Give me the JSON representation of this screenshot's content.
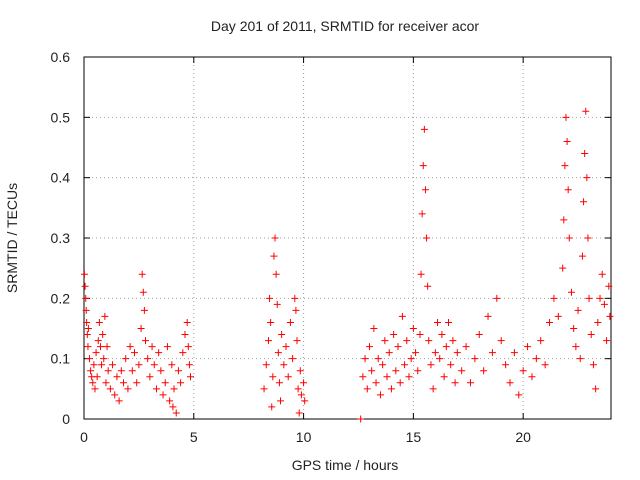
{
  "chart_data": {
    "type": "scatter",
    "title": "Day 201 of 2011, SRMTID for receiver acor",
    "xlabel": "GPS time / hours",
    "ylabel": "SRMTID / TECUs",
    "xlim": [
      0,
      24
    ],
    "ylim": [
      0,
      0.6
    ],
    "xticks": [
      0,
      5,
      10,
      15,
      20
    ],
    "xtick_labels": [
      "0",
      "5",
      "10",
      "15",
      "20"
    ],
    "yticks": [
      0,
      0.1,
      0.2,
      0.3,
      0.4,
      0.5,
      0.6
    ],
    "ytick_labels": [
      "0",
      "0.1",
      "0.2",
      "0.3",
      "0.4",
      "0.5",
      "0.6"
    ],
    "grid": true,
    "marker": "+",
    "series": [
      {
        "name": "SRMTID",
        "color": "#ff0000",
        "points": [
          [
            0.02,
            0.24
          ],
          [
            0.05,
            0.22
          ],
          [
            0.08,
            0.2
          ],
          [
            0.1,
            0.18
          ],
          [
            0.12,
            0.16
          ],
          [
            0.15,
            0.14
          ],
          [
            0.18,
            0.12
          ],
          [
            0.2,
            0.15
          ],
          [
            0.25,
            0.1
          ],
          [
            0.3,
            0.08
          ],
          [
            0.35,
            0.07
          ],
          [
            0.4,
            0.06
          ],
          [
            0.45,
            0.09
          ],
          [
            0.5,
            0.05
          ],
          [
            0.55,
            0.11
          ],
          [
            0.6,
            0.07
          ],
          [
            0.65,
            0.13
          ],
          [
            0.7,
            0.16
          ],
          [
            0.75,
            0.12
          ],
          [
            0.8,
            0.09
          ],
          [
            0.85,
            0.14
          ],
          [
            0.9,
            0.1
          ],
          [
            0.95,
            0.17
          ],
          [
            1.0,
            0.06
          ],
          [
            1.05,
            0.12
          ],
          [
            1.1,
            0.08
          ],
          [
            1.2,
            0.05
          ],
          [
            1.3,
            0.09
          ],
          [
            1.4,
            0.04
          ],
          [
            1.5,
            0.07
          ],
          [
            1.6,
            0.03
          ],
          [
            1.7,
            0.08
          ],
          [
            1.8,
            0.06
          ],
          [
            1.9,
            0.1
          ],
          [
            2.0,
            0.05
          ],
          [
            2.1,
            0.12
          ],
          [
            2.2,
            0.08
          ],
          [
            2.3,
            0.11
          ],
          [
            2.4,
            0.06
          ],
          [
            2.5,
            0.09
          ],
          [
            2.6,
            0.15
          ],
          [
            2.65,
            0.24
          ],
          [
            2.7,
            0.21
          ],
          [
            2.75,
            0.18
          ],
          [
            2.8,
            0.13
          ],
          [
            2.9,
            0.1
          ],
          [
            3.0,
            0.07
          ],
          [
            3.1,
            0.12
          ],
          [
            3.2,
            0.09
          ],
          [
            3.3,
            0.05
          ],
          [
            3.4,
            0.11
          ],
          [
            3.5,
            0.08
          ],
          [
            3.6,
            0.04
          ],
          [
            3.7,
            0.06
          ],
          [
            3.8,
            0.12
          ],
          [
            3.9,
            0.03
          ],
          [
            4.0,
            0.09
          ],
          [
            4.05,
            0.02
          ],
          [
            4.1,
            0.05
          ],
          [
            4.2,
            0.01
          ],
          [
            4.3,
            0.08
          ],
          [
            4.4,
            0.06
          ],
          [
            4.5,
            0.11
          ],
          [
            4.6,
            0.14
          ],
          [
            4.7,
            0.16
          ],
          [
            4.75,
            0.12
          ],
          [
            4.8,
            0.09
          ],
          [
            4.85,
            0.07
          ],
          [
            8.2,
            0.05
          ],
          [
            8.3,
            0.09
          ],
          [
            8.4,
            0.13
          ],
          [
            8.45,
            0.2
          ],
          [
            8.5,
            0.16
          ],
          [
            8.55,
            0.02
          ],
          [
            8.6,
            0.07
          ],
          [
            8.65,
            0.27
          ],
          [
            8.7,
            0.3
          ],
          [
            8.75,
            0.24
          ],
          [
            8.8,
            0.19
          ],
          [
            8.85,
            0.11
          ],
          [
            8.9,
            0.06
          ],
          [
            8.95,
            0.03
          ],
          [
            9.0,
            0.14
          ],
          [
            9.1,
            0.09
          ],
          [
            9.2,
            0.12
          ],
          [
            9.3,
            0.07
          ],
          [
            9.4,
            0.16
          ],
          [
            9.5,
            0.1
          ],
          [
            9.6,
            0.2
          ],
          [
            9.65,
            0.18
          ],
          [
            9.7,
            0.13
          ],
          [
            9.75,
            0.05
          ],
          [
            9.8,
            0.01
          ],
          [
            9.85,
            0.08
          ],
          [
            9.9,
            0.04
          ],
          [
            10.0,
            0.06
          ],
          [
            10.05,
            0.03
          ],
          [
            12.6,
            0.0
          ],
          [
            12.7,
            0.07
          ],
          [
            12.8,
            0.1
          ],
          [
            12.9,
            0.05
          ],
          [
            13.0,
            0.12
          ],
          [
            13.1,
            0.08
          ],
          [
            13.2,
            0.15
          ],
          [
            13.3,
            0.06
          ],
          [
            13.4,
            0.1
          ],
          [
            13.5,
            0.04
          ],
          [
            13.6,
            0.09
          ],
          [
            13.7,
            0.13
          ],
          [
            13.8,
            0.07
          ],
          [
            13.9,
            0.11
          ],
          [
            14.0,
            0.05
          ],
          [
            14.1,
            0.14
          ],
          [
            14.2,
            0.08
          ],
          [
            14.3,
            0.12
          ],
          [
            14.4,
            0.06
          ],
          [
            14.5,
            0.17
          ],
          [
            14.6,
            0.09
          ],
          [
            14.7,
            0.13
          ],
          [
            14.8,
            0.07
          ],
          [
            14.9,
            0.1
          ],
          [
            15.0,
            0.15
          ],
          [
            15.1,
            0.11
          ],
          [
            15.2,
            0.08
          ],
          [
            15.3,
            0.14
          ],
          [
            15.35,
            0.24
          ],
          [
            15.4,
            0.34
          ],
          [
            15.45,
            0.42
          ],
          [
            15.5,
            0.48
          ],
          [
            15.55,
            0.38
          ],
          [
            15.6,
            0.3
          ],
          [
            15.65,
            0.22
          ],
          [
            15.7,
            0.13
          ],
          [
            15.8,
            0.09
          ],
          [
            15.9,
            0.05
          ],
          [
            16.0,
            0.11
          ],
          [
            16.1,
            0.16
          ],
          [
            16.2,
            0.1
          ],
          [
            16.3,
            0.14
          ],
          [
            16.4,
            0.07
          ],
          [
            16.5,
            0.12
          ],
          [
            16.6,
            0.16
          ],
          [
            16.7,
            0.09
          ],
          [
            16.8,
            0.13
          ],
          [
            16.9,
            0.06
          ],
          [
            17.0,
            0.11
          ],
          [
            17.2,
            0.08
          ],
          [
            17.4,
            0.12
          ],
          [
            17.6,
            0.06
          ],
          [
            17.8,
            0.1
          ],
          [
            18.0,
            0.14
          ],
          [
            18.2,
            0.08
          ],
          [
            18.4,
            0.17
          ],
          [
            18.6,
            0.11
          ],
          [
            18.8,
            0.2
          ],
          [
            19.0,
            0.13
          ],
          [
            19.2,
            0.09
          ],
          [
            19.4,
            0.06
          ],
          [
            19.6,
            0.11
          ],
          [
            19.8,
            0.04
          ],
          [
            20.0,
            0.08
          ],
          [
            20.2,
            0.12
          ],
          [
            20.4,
            0.07
          ],
          [
            20.6,
            0.1
          ],
          [
            20.8,
            0.13
          ],
          [
            21.0,
            0.09
          ],
          [
            21.2,
            0.16
          ],
          [
            21.4,
            0.2
          ],
          [
            21.6,
            0.17
          ],
          [
            21.8,
            0.25
          ],
          [
            21.85,
            0.33
          ],
          [
            21.9,
            0.42
          ],
          [
            21.95,
            0.5
          ],
          [
            22.0,
            0.46
          ],
          [
            22.05,
            0.38
          ],
          [
            22.1,
            0.3
          ],
          [
            22.2,
            0.21
          ],
          [
            22.3,
            0.15
          ],
          [
            22.4,
            0.12
          ],
          [
            22.5,
            0.18
          ],
          [
            22.6,
            0.1
          ],
          [
            22.7,
            0.27
          ],
          [
            22.75,
            0.36
          ],
          [
            22.8,
            0.44
          ],
          [
            22.85,
            0.51
          ],
          [
            22.9,
            0.4
          ],
          [
            22.95,
            0.3
          ],
          [
            23.0,
            0.2
          ],
          [
            23.1,
            0.14
          ],
          [
            23.2,
            0.09
          ],
          [
            23.3,
            0.05
          ],
          [
            23.4,
            0.16
          ],
          [
            23.5,
            0.2
          ],
          [
            23.6,
            0.24
          ],
          [
            23.7,
            0.19
          ],
          [
            23.8,
            0.13
          ],
          [
            23.9,
            0.22
          ],
          [
            23.95,
            0.17
          ]
        ]
      }
    ]
  }
}
